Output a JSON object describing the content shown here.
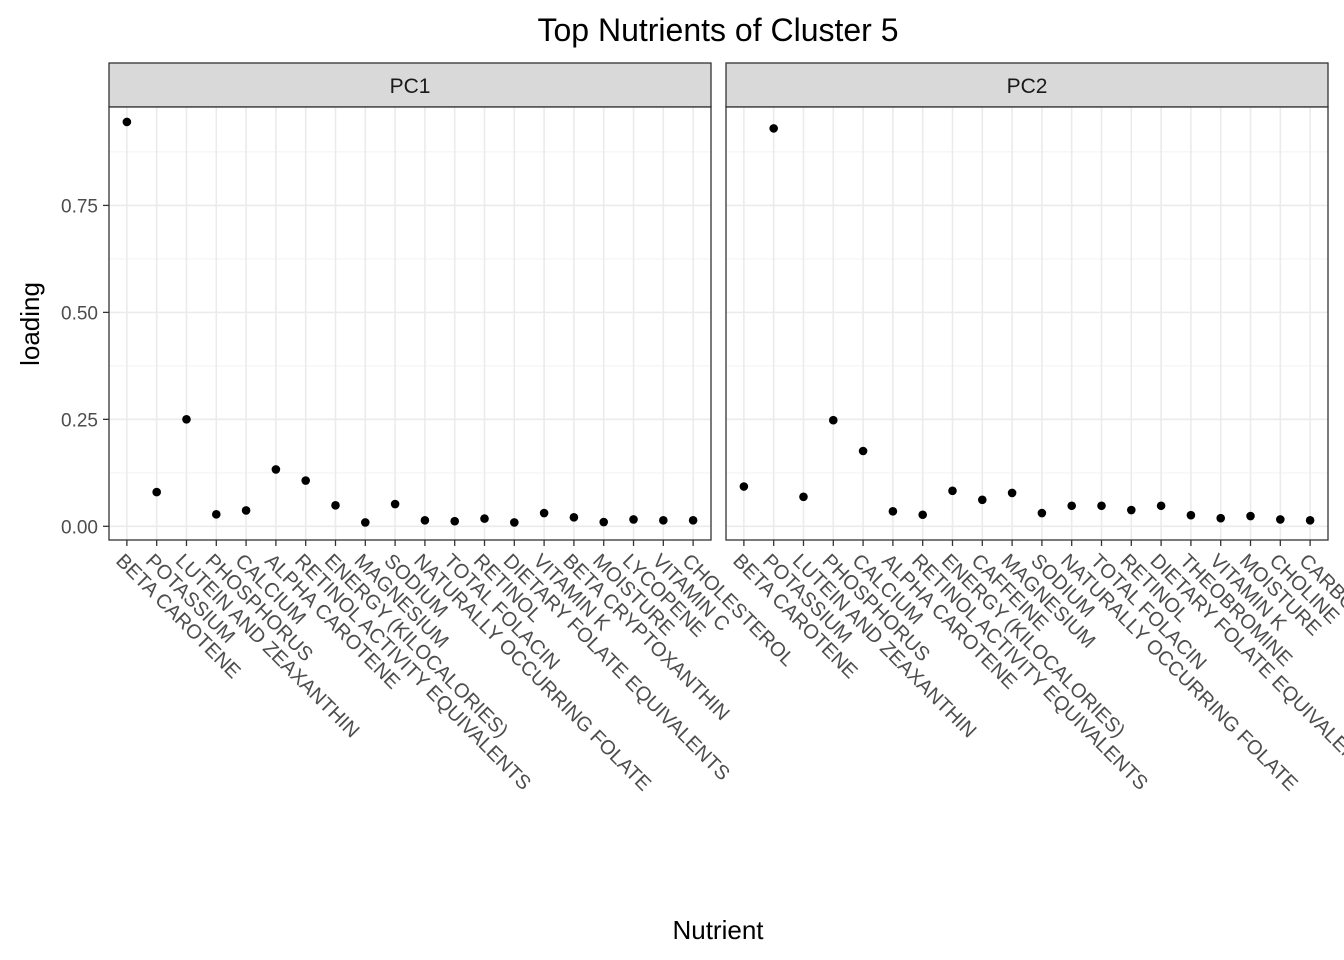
{
  "chart_data": {
    "type": "scatter",
    "title": "Top Nutrients of Cluster 5",
    "xlabel": "Nutrient",
    "ylabel": "loading",
    "ylim": [
      -0.032,
      0.98
    ],
    "yticks": [
      0.0,
      0.25,
      0.5,
      0.75
    ],
    "ytick_labels": [
      "0.00",
      "0.25",
      "0.50",
      "0.75"
    ],
    "grid": true,
    "point_color": "#000000",
    "panels": [
      {
        "name": "PC1",
        "categories": [
          "BETA CAROTENE",
          "POTASSIUM",
          "LUTEIN AND ZEAXANTHIN",
          "PHOSPHORUS",
          "CALCIUM",
          "ALPHA CAROTENE",
          "RETINOL ACTIVITY EQUIVALENTS",
          "ENERGY (KILOCALORIES)",
          "MAGNESIUM",
          "SODIUM",
          "NATURALLY OCCURRING FOLATE",
          "TOTAL FOLACIN",
          "RETINOL",
          "DIETARY FOLATE EQUIVALENTS",
          "VITAMIN K",
          "BETA CRYPTOXANTHIN",
          "MOISTURE",
          "LYCOPENE",
          "VITAMIN C",
          "CHOLESTEROL"
        ],
        "values": [
          0.945,
          0.08,
          0.25,
          0.028,
          0.037,
          0.133,
          0.107,
          0.049,
          0.009,
          0.052,
          0.014,
          0.012,
          0.018,
          0.009,
          0.031,
          0.021,
          0.01,
          0.016,
          0.014,
          0.014
        ]
      },
      {
        "name": "PC2",
        "categories": [
          "BETA CAROTENE",
          "POTASSIUM",
          "LUTEIN AND ZEAXANTHIN",
          "PHOSPHORUS",
          "CALCIUM",
          "ALPHA CAROTENE",
          "RETINOL ACTIVITY EQUIVALENTS",
          "ENERGY (KILOCALORIES)",
          "CAFFEINE",
          "MAGNESIUM",
          "SODIUM",
          "NATURALLY OCCURRING FOLATE",
          "TOTAL FOLACIN",
          "RETINOL",
          "DIETARY FOLATE EQUIVALENTS",
          "THEOBROMINE",
          "VITAMIN K",
          "MOISTURE",
          "CHOLINE",
          "CARBOHYDRATE"
        ],
        "values": [
          0.093,
          0.93,
          0.069,
          0.248,
          0.176,
          0.035,
          0.027,
          0.083,
          0.062,
          0.078,
          0.031,
          0.048,
          0.048,
          0.038,
          0.048,
          0.026,
          0.019,
          0.024,
          0.016,
          0.014
        ]
      }
    ]
  }
}
